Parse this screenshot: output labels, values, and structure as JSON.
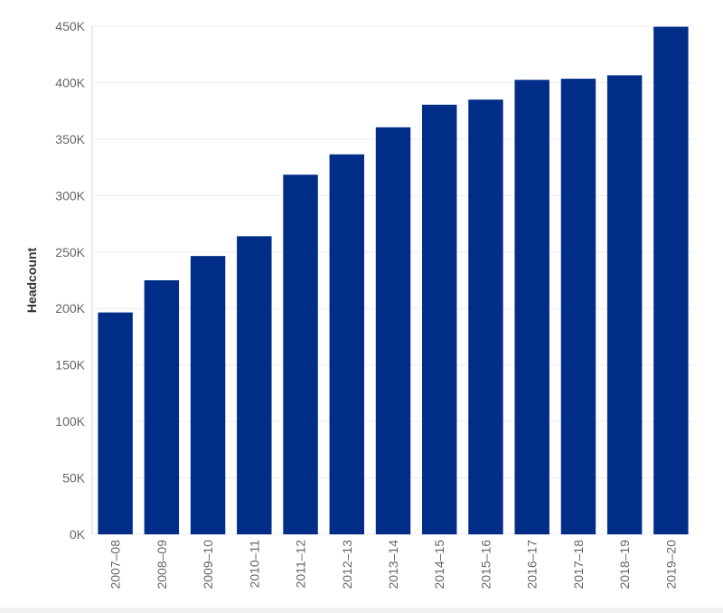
{
  "chart_data": {
    "type": "bar",
    "title": "",
    "xlabel": "",
    "ylabel": "Headcount",
    "ylim": [
      0,
      450000
    ],
    "grid": true,
    "bar_color": "#002d87",
    "categories": [
      "2007–08",
      "2008–09",
      "2009–10",
      "2010–11",
      "2011–12",
      "2012–13",
      "2013–14",
      "2014–15",
      "2015–16",
      "2016–17",
      "2017–18",
      "2018–19",
      "2019–20"
    ],
    "values": [
      196500,
      225000,
      246500,
      264000,
      318500,
      336500,
      360500,
      380500,
      385000,
      402500,
      403500,
      406500,
      449500
    ],
    "yticks": [
      0,
      50000,
      100000,
      150000,
      200000,
      250000,
      300000,
      350000,
      400000,
      450000
    ],
    "ytick_labels": [
      "0K",
      "50K",
      "100K",
      "150K",
      "200K",
      "250K",
      "300K",
      "350K",
      "400K",
      "450K"
    ]
  }
}
